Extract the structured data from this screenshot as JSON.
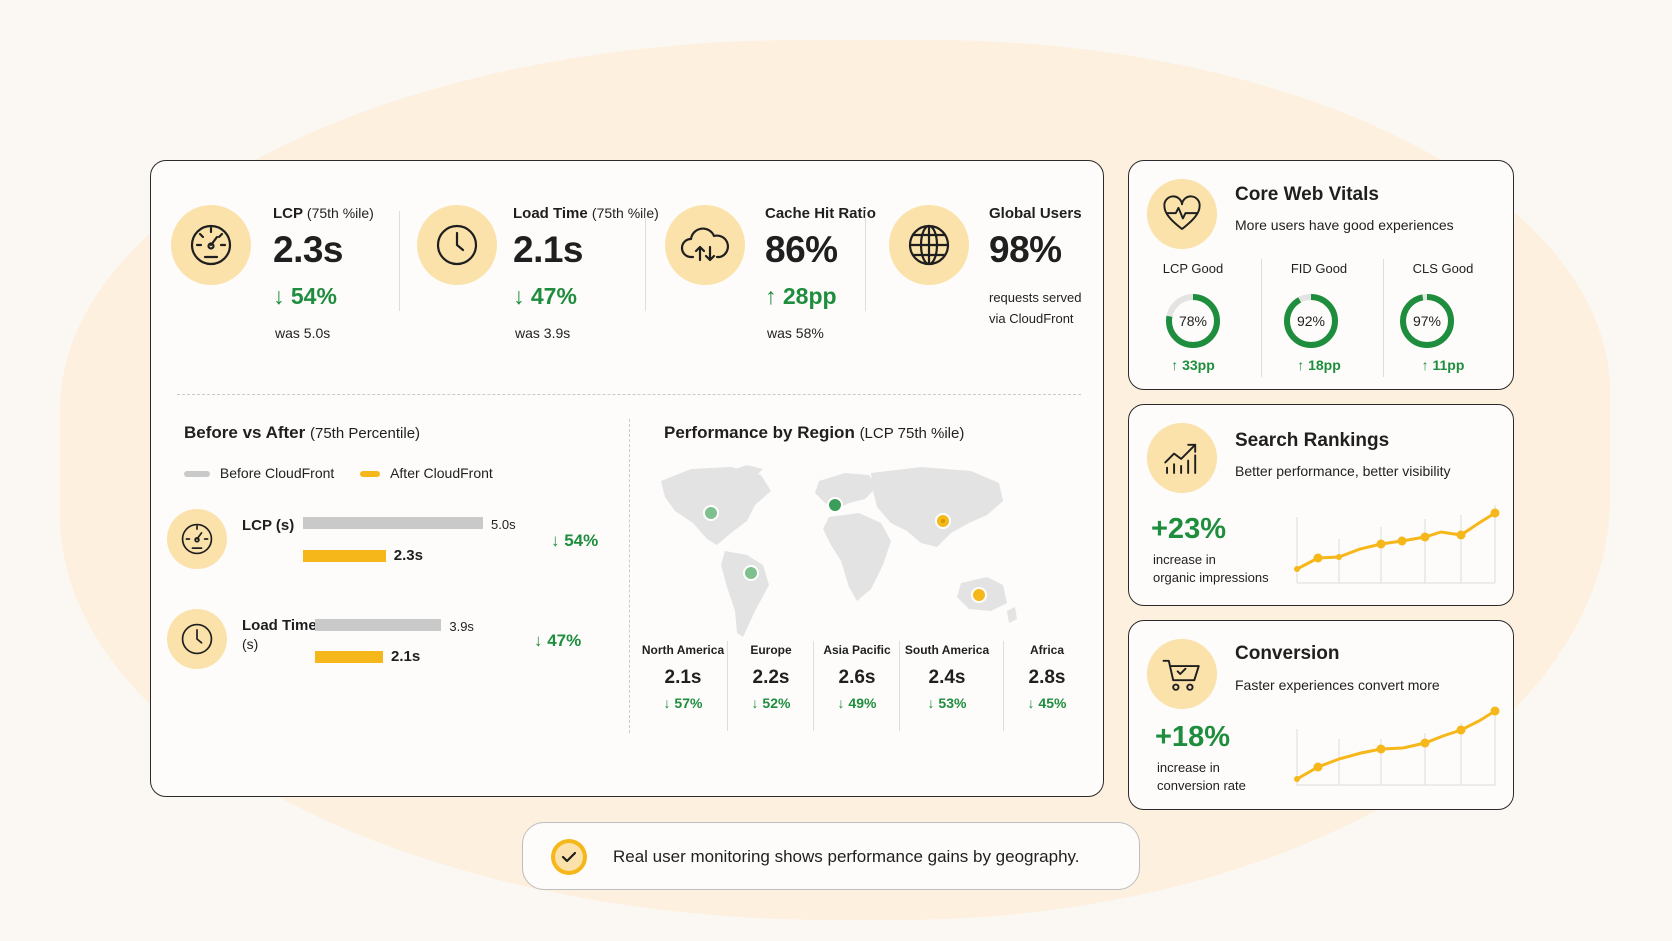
{
  "kpis": [
    {
      "title": "LCP",
      "title_sub": "(75th %ile)",
      "value": "2.3s",
      "delta": "↓ 54%",
      "note": "was 5.0s"
    },
    {
      "title": "Load Time",
      "title_sub": "(75th %ile)",
      "value": "2.1s",
      "delta": "↓ 47%",
      "note": "was 3.9s"
    },
    {
      "title": "Cache Hit Ratio",
      "title_sub": "",
      "value": "86%",
      "delta": "↑ 28pp",
      "note": "was 58%"
    },
    {
      "title": "Global Users",
      "title_sub": "",
      "value": "98%",
      "note_line1": "requests served",
      "note_line2": "via CloudFront"
    }
  ],
  "before_after": {
    "title": "Before vs After",
    "title_sub": "(75th Percentile)",
    "legend_before": "Before CloudFront",
    "legend_after": "After CloudFront",
    "rows": [
      {
        "label": "LCP (s)",
        "label2": "",
        "before_value": 5.0,
        "after_value": 2.3,
        "before_label": "5.0s",
        "after_label": "2.3s",
        "delta": "↓ 54%"
      },
      {
        "label": "Load Time",
        "label2": "(s)",
        "before_value": 3.9,
        "after_value": 2.1,
        "before_label": "3.9s",
        "after_label": "2.1s",
        "delta": "↓ 47%"
      }
    ]
  },
  "regions": {
    "title": "Performance by Region",
    "title_sub": "(LCP 75th %ile)",
    "items": [
      {
        "name": "North America",
        "value": "2.1s",
        "delta": "↓ 57%"
      },
      {
        "name": "Europe",
        "value": "2.2s",
        "delta": "↓ 52%"
      },
      {
        "name": "Asia Pacific",
        "value": "2.6s",
        "delta": "↓ 49%"
      },
      {
        "name": "South America",
        "value": "2.4s",
        "delta": "↓ 53%"
      },
      {
        "name": "Africa",
        "value": "2.8s",
        "delta": "↓ 45%"
      }
    ]
  },
  "core_web_vitals": {
    "title": "Core Web Vitals",
    "subtitle": "More users have good experiences",
    "vitals": [
      {
        "label": "LCP Good",
        "percent": 78,
        "display": "78%",
        "delta": "↑ 33pp"
      },
      {
        "label": "FID Good",
        "percent": 92,
        "display": "92%",
        "delta": "↑ 18pp"
      },
      {
        "label": "CLS Good",
        "percent": 97,
        "display": "97%",
        "delta": "↑ 11pp"
      }
    ]
  },
  "search_rankings": {
    "title": "Search Rankings",
    "subtitle": "Better performance, better visibility",
    "stat": "+23%",
    "note_line1": "increase in",
    "note_line2": "organic impressions"
  },
  "conversion": {
    "title": "Conversion",
    "subtitle": "Faster experiences convert more",
    "stat": "+18%",
    "note_line1": "increase in",
    "note_line2": "conversion rate"
  },
  "footer": {
    "text": "Real user monitoring shows performance gains by geography."
  },
  "colors": {
    "accent": "#f5b719",
    "green": "#1e8e3e",
    "icon_bg": "#fbe2ab",
    "gray_bar": "#c9c9c9"
  }
}
